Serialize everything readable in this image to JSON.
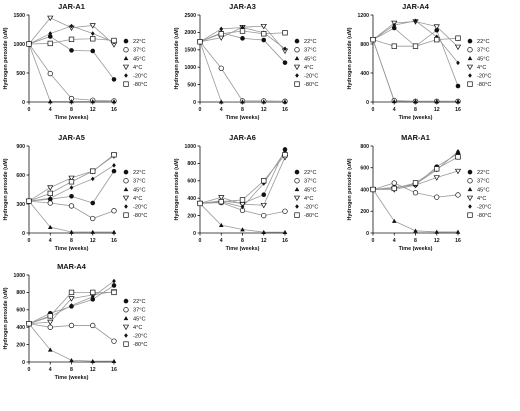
{
  "chart_data": [
    {
      "type": "line",
      "title": "JAR-A1",
      "xlabel": "Time (weeks)",
      "ylabel": "Hydrogen peroxide (uM)",
      "x": [
        0,
        4,
        8,
        12,
        16
      ],
      "xticks": [
        "0",
        "4",
        "8",
        "12",
        "16"
      ],
      "ylim": [
        0,
        1500
      ],
      "yticks": [
        "0",
        "500",
        "1000",
        "1500"
      ],
      "series": [
        {
          "name": "22°C",
          "values": [
            1000,
            1130,
            890,
            880,
            390
          ]
        },
        {
          "name": "37°C",
          "values": [
            1000,
            490,
            60,
            30,
            20
          ]
        },
        {
          "name": "45°C",
          "values": [
            1000,
            10,
            10,
            10,
            10
          ]
        },
        {
          "name": "4°C",
          "values": [
            1000,
            1450,
            1280,
            1320,
            990
          ]
        },
        {
          "name": "-20°C",
          "values": [
            1000,
            1180,
            1310,
            1180,
            1030
          ]
        },
        {
          "name": "-80°C",
          "values": [
            1000,
            1010,
            1080,
            1090,
            1060
          ]
        }
      ]
    },
    {
      "type": "line",
      "title": "JAR-A3",
      "xlabel": "Time (weeks)",
      "ylabel": "Hydrogen peroxide (uM)",
      "x": [
        0,
        4,
        8,
        12,
        16
      ],
      "xticks": [
        "0",
        "4",
        "8",
        "12",
        "16"
      ],
      "ylim": [
        0,
        2500
      ],
      "yticks": [
        "0",
        "500",
        "1000",
        "1500",
        "2000",
        "2500"
      ],
      "series": [
        {
          "name": "22°C",
          "values": [
            1730,
            1990,
            1830,
            1780,
            1130
          ]
        },
        {
          "name": "37°C",
          "values": [
            1730,
            970,
            30,
            30,
            20
          ]
        },
        {
          "name": "45°C",
          "values": [
            1730,
            10,
            10,
            10,
            10
          ]
        },
        {
          "name": "4°C",
          "values": [
            1730,
            1850,
            2150,
            2180,
            1470
          ]
        },
        {
          "name": "-20°C",
          "values": [
            1730,
            2100,
            2140,
            1990,
            1530
          ]
        },
        {
          "name": "-80°C",
          "values": [
            1730,
            1960,
            2040,
            1960,
            1990
          ]
        }
      ]
    },
    {
      "type": "line",
      "title": "JAR-A4",
      "xlabel": "Time (weeks)",
      "ylabel": "Hydrogen peroxide (uM)",
      "x": [
        0,
        4,
        8,
        12,
        16
      ],
      "xticks": [
        "0",
        "4",
        "8",
        "12",
        "16"
      ],
      "ylim": [
        0,
        1200
      ],
      "yticks": [
        "0",
        "400",
        "800",
        "1200"
      ],
      "series": [
        {
          "name": "22°C",
          "values": [
            860,
            1020,
            770,
            990,
            220
          ]
        },
        {
          "name": "37°C",
          "values": [
            860,
            20,
            10,
            10,
            10
          ]
        },
        {
          "name": "45°C",
          "values": [
            860,
            10,
            10,
            10,
            10
          ]
        },
        {
          "name": "4°C",
          "values": [
            860,
            1090,
            1110,
            1040,
            760
          ]
        },
        {
          "name": "-20°C",
          "values": [
            860,
            1060,
            1120,
            900,
            540
          ]
        },
        {
          "name": "-80°C",
          "values": [
            860,
            770,
            770,
            860,
            880
          ]
        }
      ]
    },
    {
      "type": "line",
      "title": "JAR-A5",
      "xlabel": "Time (weeks)",
      "ylabel": "Hydrogen peroxide (uM)",
      "x": [
        0,
        4,
        8,
        12,
        16
      ],
      "xticks": [
        "0",
        "4",
        "8",
        "12",
        "16"
      ],
      "ylim": [
        0,
        900
      ],
      "yticks": [
        "0",
        "300",
        "600",
        "900"
      ],
      "series": [
        {
          "name": "22°C",
          "values": [
            330,
            350,
            380,
            310,
            640
          ]
        },
        {
          "name": "37°C",
          "values": [
            330,
            310,
            280,
            150,
            230
          ]
        },
        {
          "name": "45°C",
          "values": [
            330,
            60,
            10,
            10,
            10
          ]
        },
        {
          "name": "4°C",
          "values": [
            330,
            470,
            570,
            640,
            800
          ]
        },
        {
          "name": "-20°C",
          "values": [
            330,
            360,
            470,
            560,
            700
          ]
        },
        {
          "name": "-80°C",
          "values": [
            330,
            410,
            530,
            640,
            810
          ]
        }
      ]
    },
    {
      "type": "line",
      "title": "JAR-A6",
      "xlabel": "Time (weeks)",
      "ylabel": "Hydrogen peroxide (uM)",
      "x": [
        0,
        4,
        8,
        12,
        16
      ],
      "xticks": [
        "0",
        "4",
        "8",
        "12",
        "16"
      ],
      "ylim": [
        0,
        1000
      ],
      "yticks": [
        "0",
        "200",
        "400",
        "600",
        "800",
        "1000"
      ],
      "series": [
        {
          "name": "22°C",
          "values": [
            340,
            370,
            340,
            440,
            960
          ]
        },
        {
          "name": "37°C",
          "values": [
            340,
            350,
            260,
            200,
            250
          ]
        },
        {
          "name": "45°C",
          "values": [
            340,
            90,
            40,
            10,
            10
          ]
        },
        {
          "name": "4°C",
          "values": [
            340,
            410,
            330,
            320,
            870
          ]
        },
        {
          "name": "-20°C",
          "values": [
            340,
            360,
            300,
            570,
            940
          ]
        },
        {
          "name": "-80°C",
          "values": [
            340,
            360,
            380,
            600,
            900
          ]
        }
      ]
    },
    {
      "type": "line",
      "title": "MAR-A1",
      "xlabel": "Time (weeks)",
      "ylabel": "Hydrogen peroxide (uM)",
      "x": [
        0,
        4,
        8,
        12,
        16
      ],
      "xticks": [
        "0",
        "4",
        "8",
        "12",
        "16"
      ],
      "ylim": [
        0,
        800
      ],
      "yticks": [
        "0",
        "200",
        "400",
        "600",
        "800"
      ],
      "series": [
        {
          "name": "22°C",
          "values": [
            400,
            420,
            440,
            610,
            730
          ]
        },
        {
          "name": "37°C",
          "values": [
            400,
            460,
            370,
            330,
            350
          ]
        },
        {
          "name": "45°C",
          "values": [
            400,
            110,
            20,
            10,
            10
          ]
        },
        {
          "name": "4°C",
          "values": [
            400,
            400,
            440,
            510,
            570
          ]
        },
        {
          "name": "-20°C",
          "values": [
            400,
            410,
            450,
            580,
            750
          ]
        },
        {
          "name": "-80°C",
          "values": [
            400,
            410,
            460,
            590,
            700
          ]
        }
      ]
    },
    {
      "type": "line",
      "title": "MAR-A4",
      "xlabel": "Time (weeks)",
      "ylabel": "Hydrogen peroxide (uM)",
      "x": [
        0,
        4,
        8,
        12,
        16
      ],
      "xticks": [
        "0",
        "4",
        "8",
        "12",
        "16"
      ],
      "ylim": [
        0,
        1000
      ],
      "yticks": [
        "0",
        "200",
        "400",
        "600",
        "800",
        "1000"
      ],
      "series": [
        {
          "name": "22°C",
          "values": [
            440,
            560,
            640,
            720,
            880
          ]
        },
        {
          "name": "37°C",
          "values": [
            440,
            400,
            420,
            420,
            240
          ]
        },
        {
          "name": "45°C",
          "values": [
            440,
            140,
            20,
            10,
            10
          ]
        },
        {
          "name": "4°C",
          "values": [
            440,
            460,
            730,
            770,
            810
          ]
        },
        {
          "name": "-20°C",
          "values": [
            440,
            520,
            650,
            750,
            930
          ]
        },
        {
          "name": "-80°C",
          "values": [
            440,
            530,
            800,
            800,
            800
          ]
        }
      ]
    }
  ],
  "legend": [
    {
      "label": "22°C",
      "marker": "filled-circle"
    },
    {
      "label": "37°C",
      "marker": "open-circle"
    },
    {
      "label": "45°C",
      "marker": "filled-triangle-up"
    },
    {
      "label": "4°C",
      "marker": "open-triangle-down"
    },
    {
      "label": "-20°C",
      "marker": "filled-diamond"
    },
    {
      "label": "-80°C",
      "marker": "open-square"
    }
  ],
  "colors": {
    "series_line": "#999999",
    "marker": "#111111",
    "marker_fill_open": "#ffffff"
  }
}
